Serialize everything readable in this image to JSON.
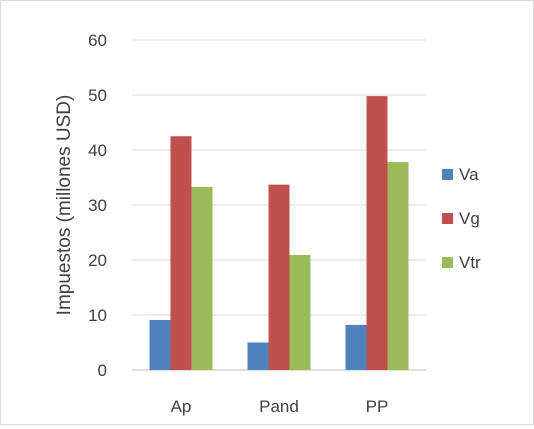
{
  "chart_data": {
    "type": "bar",
    "categories": [
      "Ap",
      "Pand",
      "PP"
    ],
    "series": [
      {
        "name": "Va",
        "values": [
          9.1,
          5.0,
          8.2
        ],
        "color": "#4f81bd"
      },
      {
        "name": "Vg",
        "values": [
          42.5,
          33.7,
          49.8
        ],
        "color": "#c0504d"
      },
      {
        "name": "Vtr",
        "values": [
          33.3,
          20.9,
          37.8
        ],
        "color": "#9bbb59"
      }
    ],
    "ylabel": "Impuestos (millones USD)",
    "ylim": [
      0,
      60
    ],
    "yticks": [
      0,
      10,
      20,
      30,
      40,
      50,
      60
    ],
    "grid": true,
    "legend": "right",
    "colors": {
      "grid": "#d9d9d9",
      "axis": "#bfbfbf",
      "text": "#404040"
    }
  }
}
